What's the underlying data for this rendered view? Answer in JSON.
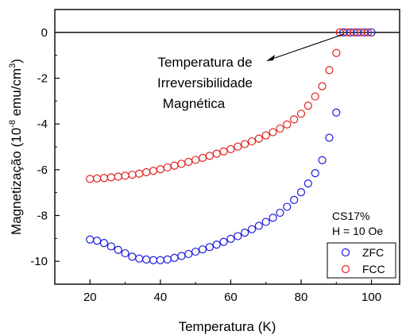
{
  "chart_data": {
    "type": "scatter",
    "title": "",
    "xlabel": "Temperatura (K)",
    "ylabel_main": "Magnetização (10",
    "ylabel_exp": "-8",
    "ylabel_unit": " emu/cm",
    "ylabel_unit_exp": "3",
    "ylabel_close": ")",
    "xlim": [
      10,
      108
    ],
    "ylim": [
      -11,
      1
    ],
    "xticks": [
      20,
      40,
      60,
      80,
      100
    ],
    "yticks": [
      0,
      -2,
      -4,
      -6,
      -8,
      -10
    ],
    "grid": false,
    "legend_position": "bottom-right",
    "sample_note": "CS17%",
    "field_note": "H = 10 Oe",
    "annotation_lines": [
      "Temperatura de",
      "Irreversibilidade",
      "Magnética"
    ],
    "series": [
      {
        "name": "ZFC",
        "color": "#1a1adb",
        "x": [
          20,
          22,
          24,
          26,
          28,
          30,
          32,
          34,
          36,
          38,
          40,
          42,
          44,
          46,
          48,
          50,
          52,
          54,
          56,
          58,
          60,
          62,
          64,
          66,
          68,
          70,
          72,
          74,
          76,
          78,
          80,
          82,
          84,
          86,
          88,
          90,
          92,
          94,
          96,
          98,
          100
        ],
        "y": [
          -9.05,
          -9.1,
          -9.2,
          -9.35,
          -9.5,
          -9.65,
          -9.8,
          -9.88,
          -9.92,
          -9.95,
          -9.95,
          -9.92,
          -9.85,
          -9.77,
          -9.68,
          -9.58,
          -9.48,
          -9.38,
          -9.27,
          -9.15,
          -9.02,
          -8.9,
          -8.75,
          -8.6,
          -8.45,
          -8.28,
          -8.1,
          -7.88,
          -7.62,
          -7.32,
          -6.98,
          -6.6,
          -6.15,
          -5.58,
          -4.6,
          -3.5,
          0,
          0,
          0,
          0,
          0
        ]
      },
      {
        "name": "FCC",
        "color": "#e02020",
        "x": [
          20,
          22,
          24,
          26,
          28,
          30,
          32,
          34,
          36,
          38,
          40,
          42,
          44,
          46,
          48,
          50,
          52,
          54,
          56,
          58,
          60,
          62,
          64,
          66,
          68,
          70,
          72,
          74,
          76,
          78,
          80,
          82,
          84,
          86,
          88,
          90,
          91,
          93,
          95,
          97,
          99
        ],
        "y": [
          -6.4,
          -6.38,
          -6.36,
          -6.33,
          -6.3,
          -6.26,
          -6.22,
          -6.17,
          -6.11,
          -6.05,
          -5.98,
          -5.9,
          -5.82,
          -5.74,
          -5.66,
          -5.57,
          -5.48,
          -5.39,
          -5.3,
          -5.2,
          -5.1,
          -4.99,
          -4.88,
          -4.76,
          -4.64,
          -4.5,
          -4.36,
          -4.2,
          -4.02,
          -3.8,
          -3.55,
          -3.2,
          -2.8,
          -2.35,
          -1.65,
          -0.9,
          0,
          0,
          0,
          0,
          0
        ]
      }
    ]
  }
}
